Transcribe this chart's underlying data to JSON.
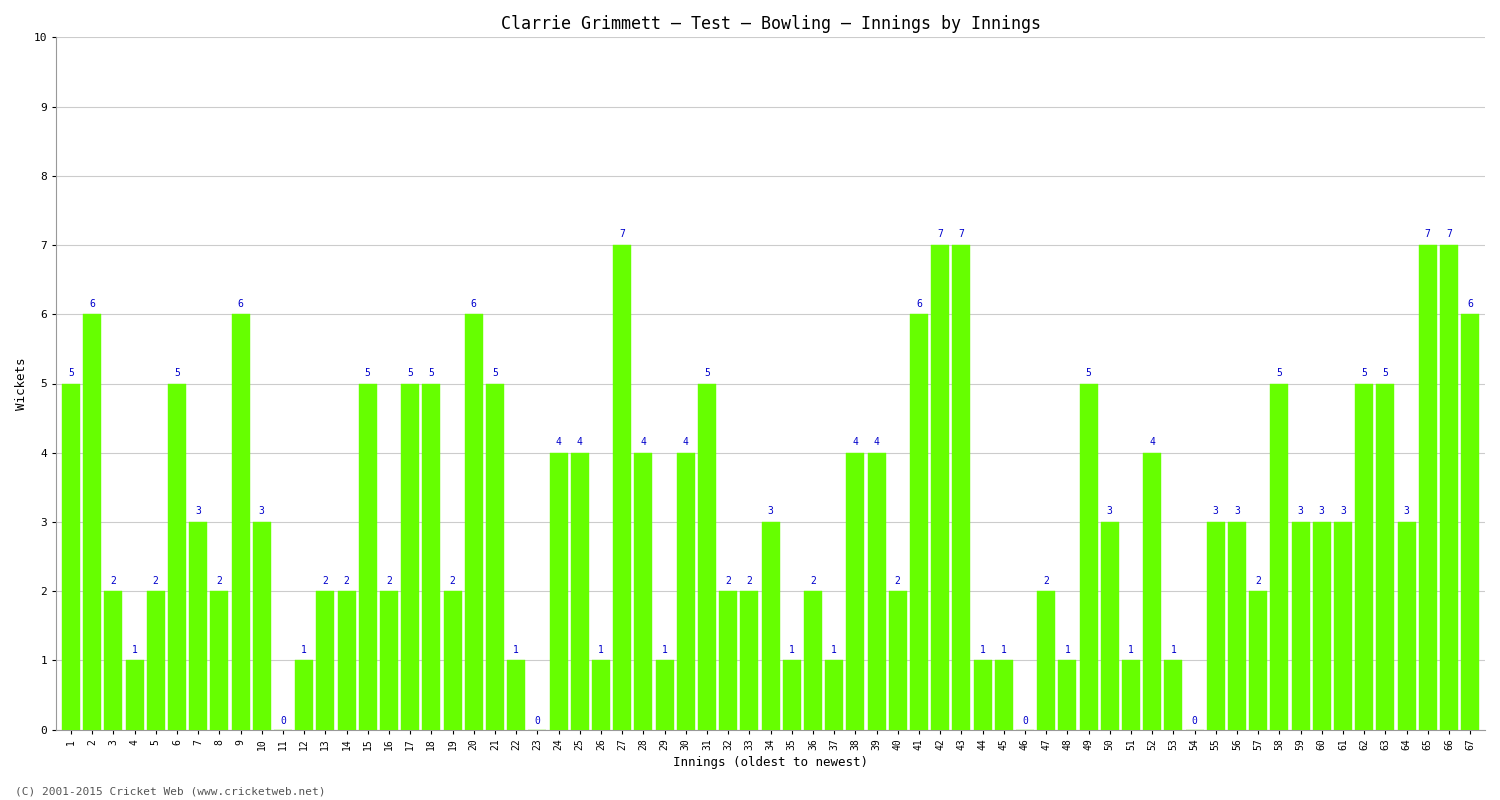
{
  "title": "Clarrie Grimmett – Test – Bowling – Innings by Innings",
  "xlabel": "Innings (oldest to newest)",
  "ylabel": "Wickets",
  "copyright": "(C) 2001-2015 Cricket Web (www.cricketweb.net)",
  "ylim": [
    0,
    10
  ],
  "bar_color": "#66FF00",
  "bar_edge_color": "#66FF00",
  "label_color": "#0000CC",
  "background_color": "#FFFFFF",
  "grid_color": "#CCCCCC",
  "wickets": [
    5,
    6,
    2,
    1,
    2,
    5,
    3,
    2,
    6,
    3,
    0,
    1,
    2,
    2,
    5,
    2,
    5,
    5,
    2,
    6,
    5,
    1,
    0,
    4,
    4,
    1,
    7,
    4,
    1,
    4,
    5,
    2,
    2,
    3,
    1,
    2,
    1,
    4,
    4,
    2,
    6,
    7,
    7,
    1,
    1,
    0,
    2,
    1,
    5,
    3,
    1,
    4,
    1,
    0,
    3,
    3,
    2,
    5,
    3,
    3,
    3,
    5,
    5,
    3,
    7,
    7,
    6
  ],
  "title_fontsize": 12,
  "label_fontsize": 9,
  "tick_fontsize": 7,
  "copyright_fontsize": 8
}
